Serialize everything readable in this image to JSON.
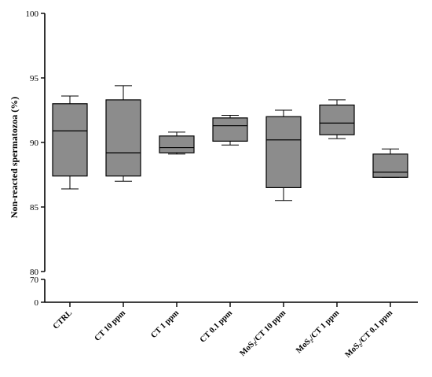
{
  "chart_data": {
    "type": "box",
    "ylabel": "Non-reacted spermatozoa (%)",
    "y_axis_segments": [
      {
        "range": [
          80,
          100
        ],
        "ticks": [
          80,
          85,
          90,
          95,
          100
        ]
      },
      {
        "range": [
          0,
          70
        ],
        "ticks": [
          0,
          70
        ]
      }
    ],
    "grid": false,
    "categories": [
      "CTRL",
      "CT 10 ppm",
      "CT 1 ppm",
      "CT 0.1 ppm",
      "MoS₂/CT 10 ppm",
      "MoS₂/CT 1 ppm",
      "MoS₂/CT 0.1 ppm"
    ],
    "boxes": [
      {
        "min": 86.4,
        "q1": 87.4,
        "median": 90.9,
        "q3": 93.0,
        "max": 93.6
      },
      {
        "min": 87.0,
        "q1": 87.4,
        "median": 89.2,
        "q3": 93.3,
        "max": 94.4
      },
      {
        "min": 89.1,
        "q1": 89.2,
        "median": 89.6,
        "q3": 90.5,
        "max": 90.8
      },
      {
        "min": 89.8,
        "q1": 90.1,
        "median": 91.3,
        "q3": 91.9,
        "max": 92.1
      },
      {
        "min": 85.5,
        "q1": 86.5,
        "median": 90.2,
        "q3": 92.0,
        "max": 92.5
      },
      {
        "min": 90.3,
        "q1": 90.6,
        "median": 91.5,
        "q3": 92.9,
        "max": 93.3
      },
      {
        "min": 87.3,
        "q1": 87.3,
        "median": 87.7,
        "q3": 89.1,
        "max": 89.5
      }
    ],
    "box_fill": "#8c8c8c",
    "line_color": "#000000"
  }
}
